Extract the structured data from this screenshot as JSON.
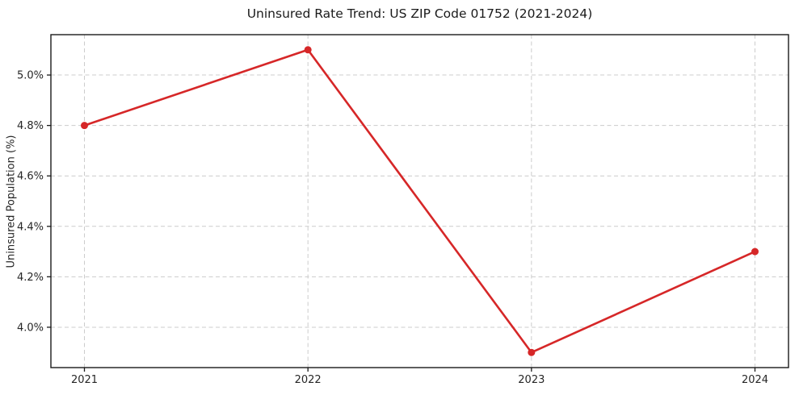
{
  "chart_data": {
    "type": "line",
    "title": "Uninsured Rate Trend: US ZIP Code 01752 (2021-2024)",
    "xlabel": "",
    "ylabel": "Uninsured Population (%)",
    "x": [
      2021,
      2022,
      2023,
      2024
    ],
    "values": [
      4.8,
      5.1,
      3.9,
      4.3
    ],
    "xlim": [
      2020.85,
      2024.15
    ],
    "ylim": [
      3.84,
      5.16
    ],
    "xticks": [
      2021,
      2022,
      2023,
      2024
    ],
    "xtick_labels": [
      "2021",
      "2022",
      "2023",
      "2024"
    ],
    "yticks": [
      4.0,
      4.2,
      4.4,
      4.6,
      4.8,
      5.0
    ],
    "ytick_labels": [
      "4.0%",
      "4.2%",
      "4.4%",
      "4.6%",
      "4.8%",
      "5.0%"
    ],
    "grid": true,
    "grid_style": "dashed",
    "legend": false,
    "colors": {
      "line": "#d62728",
      "marker": "#d62728",
      "grid": "#cccccc",
      "frame": "#1a1a1a",
      "text": "#262626",
      "background": "#ffffff"
    }
  }
}
